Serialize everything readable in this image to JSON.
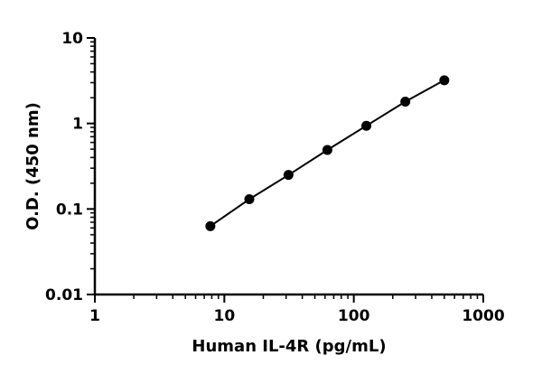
{
  "chart_data": {
    "type": "line",
    "xlabel": "Human IL-4R (pg/mL)",
    "ylabel": "O.D. (450 nm)",
    "x_scale": "log",
    "y_scale": "log",
    "xlim": [
      1,
      1000
    ],
    "ylim": [
      0.01,
      10
    ],
    "x_ticks": [
      1,
      10,
      100,
      1000
    ],
    "x_tick_labels": [
      "1",
      "10",
      "100",
      "1000"
    ],
    "y_ticks": [
      0.01,
      0.1,
      1,
      10
    ],
    "y_tick_labels": [
      "0.01",
      "0.1",
      "1",
      "10"
    ],
    "grid": false,
    "series": [
      {
        "x": [
          7.8,
          15.6,
          31.3,
          62.5,
          125,
          250,
          500
        ],
        "y": [
          0.063,
          0.13,
          0.25,
          0.49,
          0.94,
          1.8,
          3.2
        ],
        "marker": "circle",
        "color": "#000000"
      }
    ]
  }
}
